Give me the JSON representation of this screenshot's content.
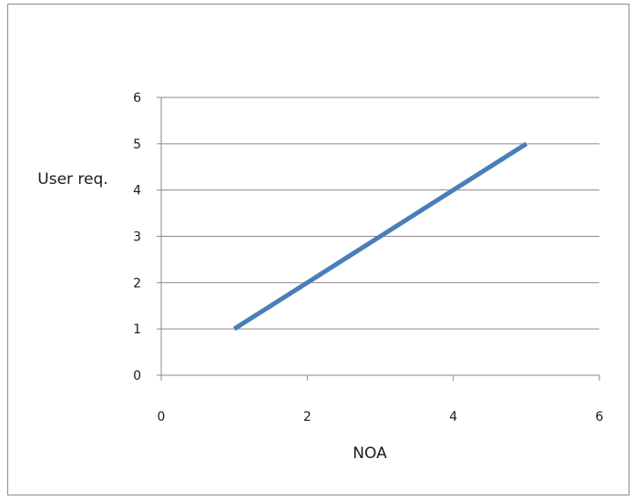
{
  "chart_data": {
    "type": "line",
    "xlabel": "NOA",
    "ylabel": "User req.",
    "xlim": [
      0,
      6
    ],
    "ylim": [
      0,
      6
    ],
    "x_ticks": [
      0,
      2,
      4,
      6
    ],
    "y_ticks": [
      0,
      1,
      2,
      3,
      4,
      5,
      6
    ],
    "grid": "horizontal",
    "legend": "none",
    "series": [
      {
        "x": [
          1,
          2,
          3,
          4,
          5
        ],
        "y": [
          1,
          2,
          3,
          4,
          5
        ],
        "color": "#4a7ebb"
      }
    ]
  }
}
